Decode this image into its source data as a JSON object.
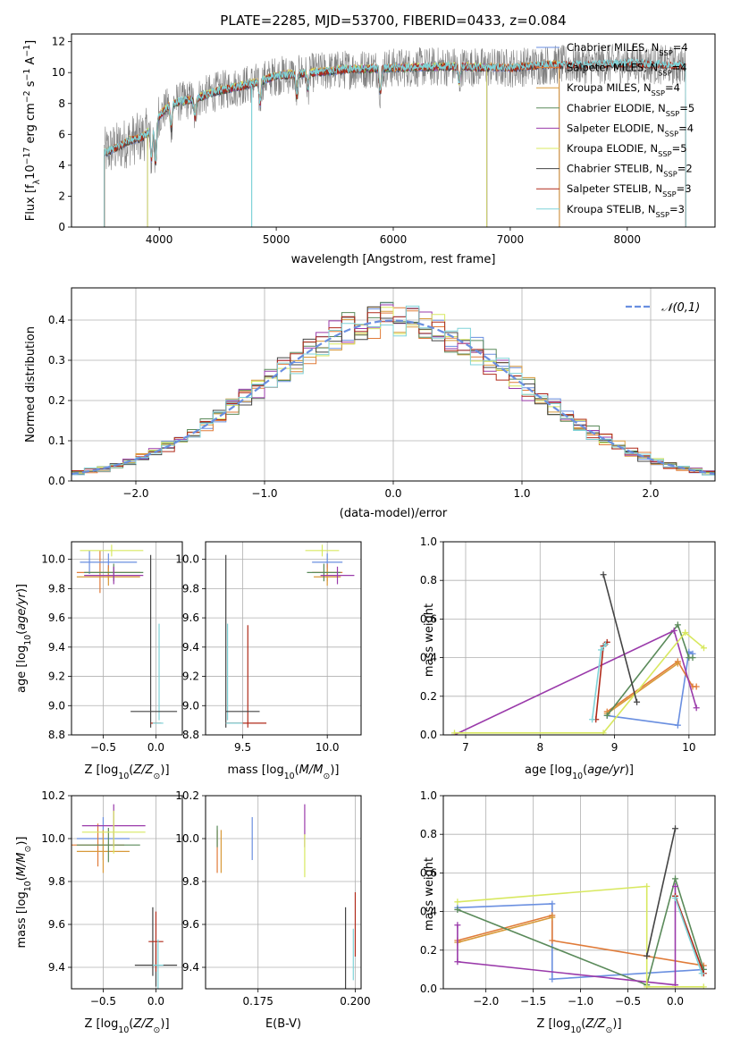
{
  "title": "PLATE=2285, MJD=53700, FIBERID=0433, z=0.084",
  "colors": {
    "chabrier_miles": "#6a8fe0",
    "salpeter_miles": "#e07b39",
    "kroupa_miles": "#d89a3a",
    "chabrier_elodie": "#5a8a5a",
    "salpeter_elodie": "#9a3aaa",
    "kroupa_elodie": "#d8e860",
    "chabrier_stelib": "#444444",
    "salpeter_stelib": "#b02a1a",
    "kroupa_stelib": "#7fd3d8",
    "data": "#808080",
    "grid": "#b0b0b0"
  },
  "chart_data": [
    {
      "id": "spectrum",
      "type": "line",
      "xlabel": "wavelength [Angstrom, rest frame]",
      "ylabel": "Flux [f_λ10^-17 erg cm^-2 s^-1 A^-1]",
      "xlim": [
        3250,
        8750
      ],
      "ylim": [
        0,
        12.5
      ],
      "xticks": [
        4000,
        5000,
        6000,
        7000,
        8000
      ],
      "yticks": [
        0,
        2,
        4,
        6,
        8,
        10,
        12
      ],
      "legend": [
        {
          "label": "Chabrier MILES, N",
          "sub": "SSP",
          "suffix": "=4",
          "key": "chabrier_miles"
        },
        {
          "label": "Salpeter MILES, N",
          "sub": "SSP",
          "suffix": "=4",
          "key": "salpeter_miles"
        },
        {
          "label": "Kroupa MILES, N",
          "sub": "SSP",
          "suffix": "=4",
          "key": "kroupa_miles"
        },
        {
          "label": "Chabrier ELODIE, N",
          "sub": "SSP",
          "suffix": "=5",
          "key": "chabrier_elodie"
        },
        {
          "label": "Salpeter ELODIE, N",
          "sub": "SSP",
          "suffix": "=4",
          "key": "salpeter_elodie"
        },
        {
          "label": "Kroupa ELODIE, N",
          "sub": "SSP",
          "suffix": "=5",
          "key": "kroupa_elodie"
        },
        {
          "label": "Chabrier STELIB, N",
          "sub": "SSP",
          "suffix": "=2",
          "key": "chabrier_stelib"
        },
        {
          "label": "Salpeter STELIB, N",
          "sub": "SSP",
          "suffix": "=3",
          "key": "salpeter_stelib"
        },
        {
          "label": "Kroupa STELIB, N",
          "sub": "SSP",
          "suffix": "=3",
          "key": "kroupa_stelib"
        }
      ],
      "continuum": [
        [
          3530,
          4.8
        ],
        [
          3650,
          5.2
        ],
        [
          3750,
          5.6
        ],
        [
          3850,
          5.8
        ],
        [
          3930,
          6.3
        ],
        [
          4000,
          7.2
        ],
        [
          4100,
          8.0
        ],
        [
          4300,
          8.3
        ],
        [
          4500,
          8.8
        ],
        [
          4800,
          9.3
        ],
        [
          5000,
          9.8
        ],
        [
          5300,
          10.0
        ],
        [
          5600,
          10.2
        ],
        [
          6000,
          10.3
        ],
        [
          6500,
          10.4
        ],
        [
          7000,
          10.3
        ],
        [
          7300,
          10.5
        ],
        [
          7700,
          10.5
        ],
        [
          8000,
          10.6
        ],
        [
          8300,
          10.5
        ],
        [
          8500,
          10.4
        ]
      ],
      "model_ranges": [
        {
          "key": "chabrier_miles",
          "start": 3530,
          "end": 7420
        },
        {
          "key": "salpeter_miles",
          "start": 3530,
          "end": 7420
        },
        {
          "key": "kroupa_miles",
          "start": 3530,
          "end": 7420
        },
        {
          "key": "chabrier_elodie",
          "start": 3900,
          "end": 6800
        },
        {
          "key": "salpeter_elodie",
          "start": 3900,
          "end": 6800
        },
        {
          "key": "kroupa_elodie",
          "start": 3900,
          "end": 6800
        },
        {
          "key": "chabrier_stelib",
          "start": 3530,
          "end": 8500
        },
        {
          "key": "salpeter_stelib",
          "start": 3530,
          "end": 8500
        },
        {
          "key": "kroupa_stelib",
          "start": 3530,
          "end": 8500
        }
      ]
    },
    {
      "id": "residuals",
      "type": "histogram",
      "xlabel": "(data-model)/error",
      "ylabel": "Normed distribution",
      "xlim": [
        -2.5,
        2.5
      ],
      "ylim": [
        0,
        0.48
      ],
      "xticks": [
        -2,
        -1,
        0,
        1,
        2
      ],
      "yticks": [
        0.0,
        0.1,
        0.2,
        0.3,
        0.4
      ],
      "bin_width": 0.1,
      "reference": {
        "label": "𝒩(0,1)",
        "mu": 0,
        "sigma": 1
      }
    },
    {
      "id": "age_vs_Z",
      "type": "errorbar",
      "xlabel": "Z [log10(Z/Z⊙)]",
      "ylabel": "age  [log10(age/yr)]",
      "xlim": [
        -0.8,
        0.25
      ],
      "ylim": [
        8.8,
        10.12
      ],
      "xticks": [
        -0.5,
        0.0
      ],
      "yticks": [
        8.8,
        9.0,
        9.2,
        9.4,
        9.6,
        9.8,
        10.0
      ],
      "points": [
        {
          "key": "chabrier_miles",
          "x": -0.45,
          "y": 9.98,
          "xerr": 0.27,
          "yerr": 0.06
        },
        {
          "key": "salpeter_miles",
          "x": -0.45,
          "y": 9.91,
          "xerr": 0.3,
          "yerr": 0.05
        },
        {
          "key": "kroupa_miles",
          "x": -0.45,
          "y": 9.88,
          "xerr": 0.3,
          "yerr": 0.06
        },
        {
          "key": "chabrier_elodie",
          "x": -0.4,
          "y": 9.91,
          "xerr": 0.28,
          "yerr": 0.06
        },
        {
          "key": "salpeter_elodie",
          "x": -0.4,
          "y": 9.89,
          "xerr": 0.28,
          "yerr": 0.06
        },
        {
          "key": "kroupa_elodie",
          "x": -0.42,
          "y": 10.06,
          "xerr": 0.3,
          "yerr": 0.04
        },
        {
          "key": "chabrier_stelib",
          "x": -0.02,
          "y": 8.96,
          "xerr": 0.22,
          "yerr": 0.0
        },
        {
          "key": "salpeter_stelib",
          "x": 0.0,
          "y": 8.88,
          "xerr": 0.05,
          "yerr": 0.0
        },
        {
          "key": "kroupa_stelib",
          "x": 0.02,
          "y": 8.88,
          "xerr": 0.05,
          "yerr": 0.0
        }
      ],
      "vbars": [
        {
          "key": "chabrier_stelib",
          "x": -0.05,
          "y0": 8.85,
          "y1": 10.03
        },
        {
          "key": "kroupa_stelib",
          "x": 0.03,
          "y0": 8.9,
          "y1": 9.56
        },
        {
          "key": "salpeter_miles",
          "x": -0.53,
          "y0": 9.77,
          "y1": 10.06
        },
        {
          "key": "chabrier_miles",
          "x": -0.63,
          "y0": 9.9,
          "y1": 10.06
        }
      ]
    },
    {
      "id": "age_vs_mass",
      "type": "errorbar",
      "xlabel": "mass [log10(M/M⊙)]",
      "xlim": [
        9.28,
        10.2
      ],
      "ylim": [
        8.8,
        10.12
      ],
      "xticks": [
        9.5,
        10.0
      ],
      "yticks": [
        8.8,
        9.0,
        9.2,
        9.4,
        9.6,
        9.8,
        10.0
      ],
      "points": [
        {
          "key": "chabrier_miles",
          "x": 10.0,
          "y": 9.98,
          "xerr": 0.09,
          "yerr": 0.06
        },
        {
          "key": "salpeter_miles",
          "x": 10.0,
          "y": 9.91,
          "xerr": 0.09,
          "yerr": 0.06
        },
        {
          "key": "kroupa_miles",
          "x": 10.0,
          "y": 9.88,
          "xerr": 0.08,
          "yerr": 0.06
        },
        {
          "key": "chabrier_elodie",
          "x": 9.98,
          "y": 9.91,
          "xerr": 0.1,
          "yerr": 0.06
        },
        {
          "key": "salpeter_elodie",
          "x": 10.06,
          "y": 9.89,
          "xerr": 0.1,
          "yerr": 0.06
        },
        {
          "key": "kroupa_elodie",
          "x": 9.97,
          "y": 10.06,
          "xerr": 0.1,
          "yerr": 0.04
        },
        {
          "key": "chabrier_stelib",
          "x": 9.5,
          "y": 8.96,
          "xerr": 0.1,
          "yerr": 0.0
        },
        {
          "key": "salpeter_stelib",
          "x": 9.52,
          "y": 8.88,
          "xerr": 0.12,
          "yerr": 0.0
        },
        {
          "key": "kroupa_stelib",
          "x": 9.45,
          "y": 8.88,
          "xerr": 0.05,
          "yerr": 0.0
        }
      ],
      "vbars": [
        {
          "key": "chabrier_stelib",
          "x": 9.4,
          "y0": 8.85,
          "y1": 10.03
        },
        {
          "key": "kroupa_stelib",
          "x": 9.41,
          "y0": 8.9,
          "y1": 9.56
        },
        {
          "key": "salpeter_stelib",
          "x": 9.53,
          "y0": 8.85,
          "y1": 9.55
        }
      ]
    },
    {
      "id": "weight_vs_age",
      "type": "line",
      "xlabel": "age  [log10(age/yr)]",
      "ylabel": "mass weight",
      "xlim": [
        6.7,
        10.35
      ],
      "ylim": [
        0,
        1.0
      ],
      "xticks": [
        7,
        8,
        9,
        10
      ],
      "yticks": [
        0.0,
        0.2,
        0.4,
        0.6,
        0.8,
        1.0
      ],
      "series": [
        {
          "key": "chabrier_miles",
          "pts": [
            [
              8.9,
              0.1
            ],
            [
              9.85,
              0.05
            ],
            [
              10.0,
              0.43
            ],
            [
              10.05,
              0.42
            ]
          ]
        },
        {
          "key": "salpeter_miles",
          "pts": [
            [
              8.9,
              0.12
            ],
            [
              9.85,
              0.38
            ],
            [
              10.05,
              0.25
            ],
            [
              10.1,
              0.25
            ]
          ]
        },
        {
          "key": "kroupa_miles",
          "pts": [
            [
              8.9,
              0.11
            ],
            [
              9.85,
              0.37
            ]
          ]
        },
        {
          "key": "chabrier_elodie",
          "pts": [
            [
              8.9,
              0.1
            ],
            [
              9.85,
              0.57
            ],
            [
              10.0,
              0.4
            ],
            [
              10.05,
              0.4
            ]
          ]
        },
        {
          "key": "salpeter_elodie",
          "pts": [
            [
              6.85,
              0.0
            ],
            [
              9.8,
              0.54
            ],
            [
              10.1,
              0.14
            ]
          ]
        },
        {
          "key": "kroupa_elodie",
          "pts": [
            [
              6.85,
              0.01
            ],
            [
              8.85,
              0.01
            ],
            [
              9.95,
              0.53
            ],
            [
              10.2,
              0.45
            ]
          ]
        },
        {
          "key": "chabrier_stelib",
          "pts": [
            [
              8.85,
              0.83
            ],
            [
              9.3,
              0.17
            ]
          ]
        },
        {
          "key": "salpeter_stelib",
          "pts": [
            [
              8.75,
              0.08
            ],
            [
              8.85,
              0.46
            ],
            [
              8.9,
              0.48
            ]
          ]
        },
        {
          "key": "kroupa_stelib",
          "pts": [
            [
              8.7,
              0.08
            ],
            [
              8.82,
              0.44
            ],
            [
              8.88,
              0.47
            ]
          ]
        }
      ]
    },
    {
      "id": "mass_vs_Z",
      "type": "errorbar",
      "xlabel": "Z [log10(Z/Z⊙)]",
      "ylabel": "mass [log10(M/M⊙)]",
      "xlim": [
        -0.8,
        0.25
      ],
      "ylim": [
        9.3,
        10.2
      ],
      "xticks": [
        -0.5,
        0.0
      ],
      "yticks": [
        9.4,
        9.6,
        9.8,
        10.0,
        10.2
      ],
      "points": [
        {
          "key": "chabrier_miles",
          "x": -0.5,
          "y": 10.0,
          "xerr": 0.25,
          "yerr": 0.1
        },
        {
          "key": "salpeter_miles",
          "x": -0.55,
          "y": 9.97,
          "xerr": 0.25,
          "yerr": 0.1
        },
        {
          "key": "kroupa_miles",
          "x": -0.5,
          "y": 9.94,
          "xerr": 0.25,
          "yerr": 0.1
        },
        {
          "key": "chabrier_elodie",
          "x": -0.45,
          "y": 9.97,
          "xerr": 0.3,
          "yerr": 0.08
        },
        {
          "key": "salpeter_elodie",
          "x": -0.4,
          "y": 10.06,
          "xerr": 0.3,
          "yerr": 0.1
        },
        {
          "key": "kroupa_elodie",
          "x": -0.4,
          "y": 10.03,
          "xerr": 0.3,
          "yerr": 0.1
        },
        {
          "key": "chabrier_stelib",
          "x": 0.0,
          "y": 9.41,
          "xerr": 0.2,
          "yerr": 0.1
        },
        {
          "key": "salpeter_stelib",
          "x": 0.0,
          "y": 9.52,
          "xerr": 0.07,
          "yerr": 0.14
        },
        {
          "key": "kroupa_stelib",
          "x": 0.02,
          "y": 9.41,
          "xerr": 0.05,
          "yerr": 0.12
        }
      ],
      "vbars": [
        {
          "key": "chabrier_stelib",
          "x": -0.03,
          "y0": 9.36,
          "y1": 9.68
        }
      ]
    },
    {
      "id": "mass_vs_ebv",
      "type": "errorbar",
      "xlabel": "E(B-V)",
      "xlim": [
        0.1615,
        0.2015
      ],
      "ylim": [
        9.3,
        10.2
      ],
      "xticks": [
        0.175,
        0.2
      ],
      "xticklabels": [
        "0.175",
        "0.200"
      ],
      "yticks": [
        9.4,
        9.6,
        9.8,
        10.0,
        10.2
      ],
      "points": [
        {
          "key": "chabrier_miles",
          "x": 0.1735,
          "y": 10.0,
          "xerr": 0,
          "yerr": 0.1
        },
        {
          "key": "salpeter_miles",
          "x": 0.1645,
          "y": 9.94,
          "xerr": 0,
          "yerr": 0.1
        },
        {
          "key": "kroupa_miles",
          "x": 0.1655,
          "y": 9.94,
          "xerr": 0,
          "yerr": 0.1
        },
        {
          "key": "chabrier_elodie",
          "x": 0.1645,
          "y": 10.01,
          "xerr": 0,
          "yerr": 0.05
        },
        {
          "key": "salpeter_elodie",
          "x": 0.187,
          "y": 10.06,
          "xerr": 0,
          "yerr": 0.1
        },
        {
          "key": "kroupa_elodie",
          "x": 0.187,
          "y": 9.92,
          "xerr": 0,
          "yerr": 0.1
        },
        {
          "key": "chabrier_stelib",
          "x": 0.1975,
          "y": 9.49,
          "xerr": 0,
          "yerr": 0.19
        },
        {
          "key": "salpeter_stelib",
          "x": 0.2,
          "y": 9.6,
          "xerr": 0,
          "yerr": 0.15
        },
        {
          "key": "kroupa_stelib",
          "x": 0.1995,
          "y": 9.46,
          "xerr": 0,
          "yerr": 0.12
        }
      ]
    },
    {
      "id": "weight_vs_Z",
      "type": "line",
      "xlabel": "Z [log10(Z/Z⊙)]",
      "ylabel": "mass weight",
      "xlim": [
        -2.45,
        0.42
      ],
      "ylim": [
        0,
        1.0
      ],
      "xticks": [
        -2.0,
        -1.5,
        -1.0,
        -0.5,
        0.0
      ],
      "xticklabels": [
        "−2.0",
        "−1.5",
        "−1.0",
        "−0.5",
        "0.0"
      ],
      "yticks": [
        0.0,
        0.2,
        0.4,
        0.6,
        0.8,
        1.0
      ],
      "series": [
        {
          "key": "chabrier_miles",
          "pts": [
            [
              -2.3,
              0.42
            ],
            [
              -1.3,
              0.44
            ],
            [
              -1.3,
              0.05
            ],
            [
              0.3,
              0.1
            ]
          ]
        },
        {
          "key": "salpeter_miles",
          "pts": [
            [
              -2.3,
              0.25
            ],
            [
              -1.3,
              0.38
            ],
            [
              -1.3,
              0.25
            ],
            [
              0.3,
              0.12
            ]
          ]
        },
        {
          "key": "kroupa_miles",
          "pts": [
            [
              -2.3,
              0.24
            ],
            [
              -1.3,
              0.37
            ]
          ]
        },
        {
          "key": "chabrier_elodie",
          "pts": [
            [
              -2.3,
              0.41
            ],
            [
              -0.3,
              0.02
            ],
            [
              0.0,
              0.57
            ],
            [
              0.3,
              0.1
            ]
          ]
        },
        {
          "key": "salpeter_elodie",
          "pts": [
            [
              -2.3,
              0.33
            ],
            [
              -2.3,
              0.14
            ],
            [
              0.0,
              0.02
            ],
            [
              0.0,
              0.53
            ]
          ]
        },
        {
          "key": "kroupa_elodie",
          "pts": [
            [
              -2.3,
              0.45
            ],
            [
              -0.3,
              0.53
            ],
            [
              -0.3,
              0.01
            ],
            [
              0.3,
              0.01
            ]
          ]
        },
        {
          "key": "chabrier_stelib",
          "pts": [
            [
              -0.3,
              0.17
            ],
            [
              0.0,
              0.83
            ]
          ]
        },
        {
          "key": "salpeter_stelib",
          "pts": [
            [
              0.0,
              0.48
            ],
            [
              0.3,
              0.08
            ]
          ]
        },
        {
          "key": "kroupa_stelib",
          "pts": [
            [
              0.0,
              0.47
            ],
            [
              0.28,
              0.08
            ]
          ]
        }
      ]
    }
  ]
}
